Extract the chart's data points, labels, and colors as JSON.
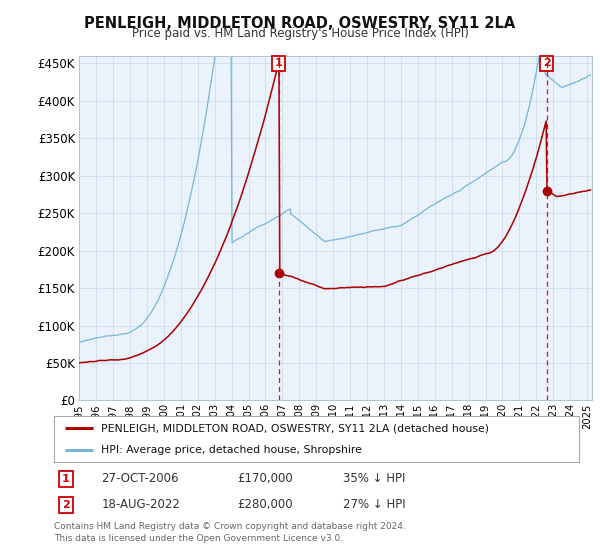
{
  "title": "PENLEIGH, MIDDLETON ROAD, OSWESTRY, SY11 2LA",
  "subtitle": "Price paid vs. HM Land Registry's House Price Index (HPI)",
  "ylim": [
    0,
    460000
  ],
  "yticks": [
    0,
    50000,
    100000,
    150000,
    200000,
    250000,
    300000,
    350000,
    400000,
    450000
  ],
  "ytick_labels": [
    "£0",
    "£50K",
    "£100K",
    "£150K",
    "£200K",
    "£250K",
    "£300K",
    "£350K",
    "£400K",
    "£450K"
  ],
  "hpi_color": "#7ab3d4",
  "sale_color": "#aa0000",
  "plot_bg": "#eaf3fb",
  "sale1_date": "27-OCT-2006",
  "sale1_price": 170000,
  "sale1_pct": "35%",
  "sale1_x": 2006.79,
  "sale1_y": 170000,
  "sale2_date": "18-AUG-2022",
  "sale2_price": 280000,
  "sale2_pct": "27%",
  "sale2_x": 2022.62,
  "sale2_y": 280000,
  "legend_label1": "PENLEIGH, MIDDLETON ROAD, OSWESTRY, SY11 2LA (detached house)",
  "legend_label2": "HPI: Average price, detached house, Shropshire",
  "footer": "Contains HM Land Registry data © Crown copyright and database right 2024.\nThis data is licensed under the Open Government Licence v3.0.",
  "background_color": "#ffffff",
  "xmin": 1995,
  "xmax": 2025.3
}
